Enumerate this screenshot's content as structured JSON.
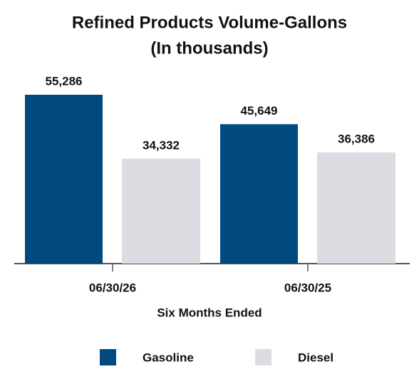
{
  "chart_data": {
    "type": "bar",
    "title": "Refined Products Volume-Gallons",
    "subtitle": "(In thousands)",
    "x_label": "Six Months Ended",
    "categories": [
      "06/30/26",
      "06/30/25"
    ],
    "series": [
      {
        "name": "Gasoline",
        "color": "#004a80",
        "values": [
          55286,
          45649
        ],
        "value_labels": [
          "55,286",
          "45,649"
        ]
      },
      {
        "name": "Diesel",
        "color": "#dcdde2",
        "values": [
          34332,
          36386
        ],
        "value_labels": [
          "34,332",
          "36,386"
        ]
      }
    ],
    "legend": "bottom"
  }
}
